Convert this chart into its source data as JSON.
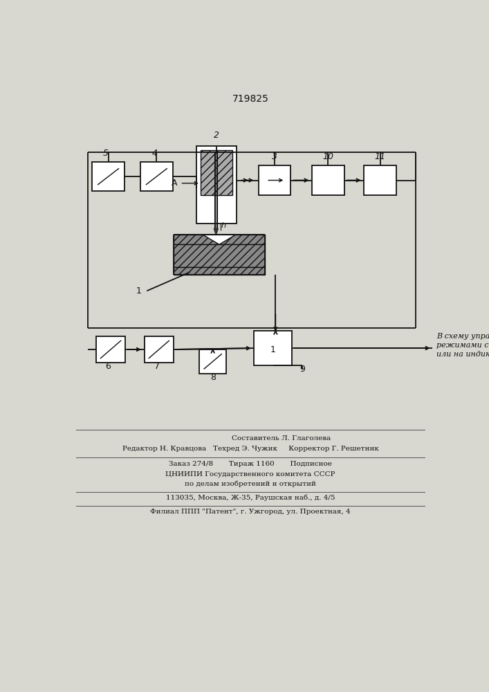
{
  "title": "719825",
  "title_fontsize": 10,
  "background_color": "#d8d8d0",
  "box_color": "#111111",
  "line_color": "#111111",
  "italic_text": "В схему управления\nрежимами сварки\nили на индикатор",
  "bottom_text_lines": [
    "Составитель Л. Глаголева",
    "Редактор Н. Кравцова   Техред Э. Чужик     Корректор Г. Решетник",
    "Заказ 274/8       Тираж 1160       Подписное",
    "ЦНИИПИ Государственного комитета СССР",
    "по делам изобретений и открытий",
    "113035, Москва, Ж-35, Раушская наб., д. 4/5",
    "Филиал ППП \"Патент\", г. Ужгород, ул. Проектная, 4"
  ]
}
